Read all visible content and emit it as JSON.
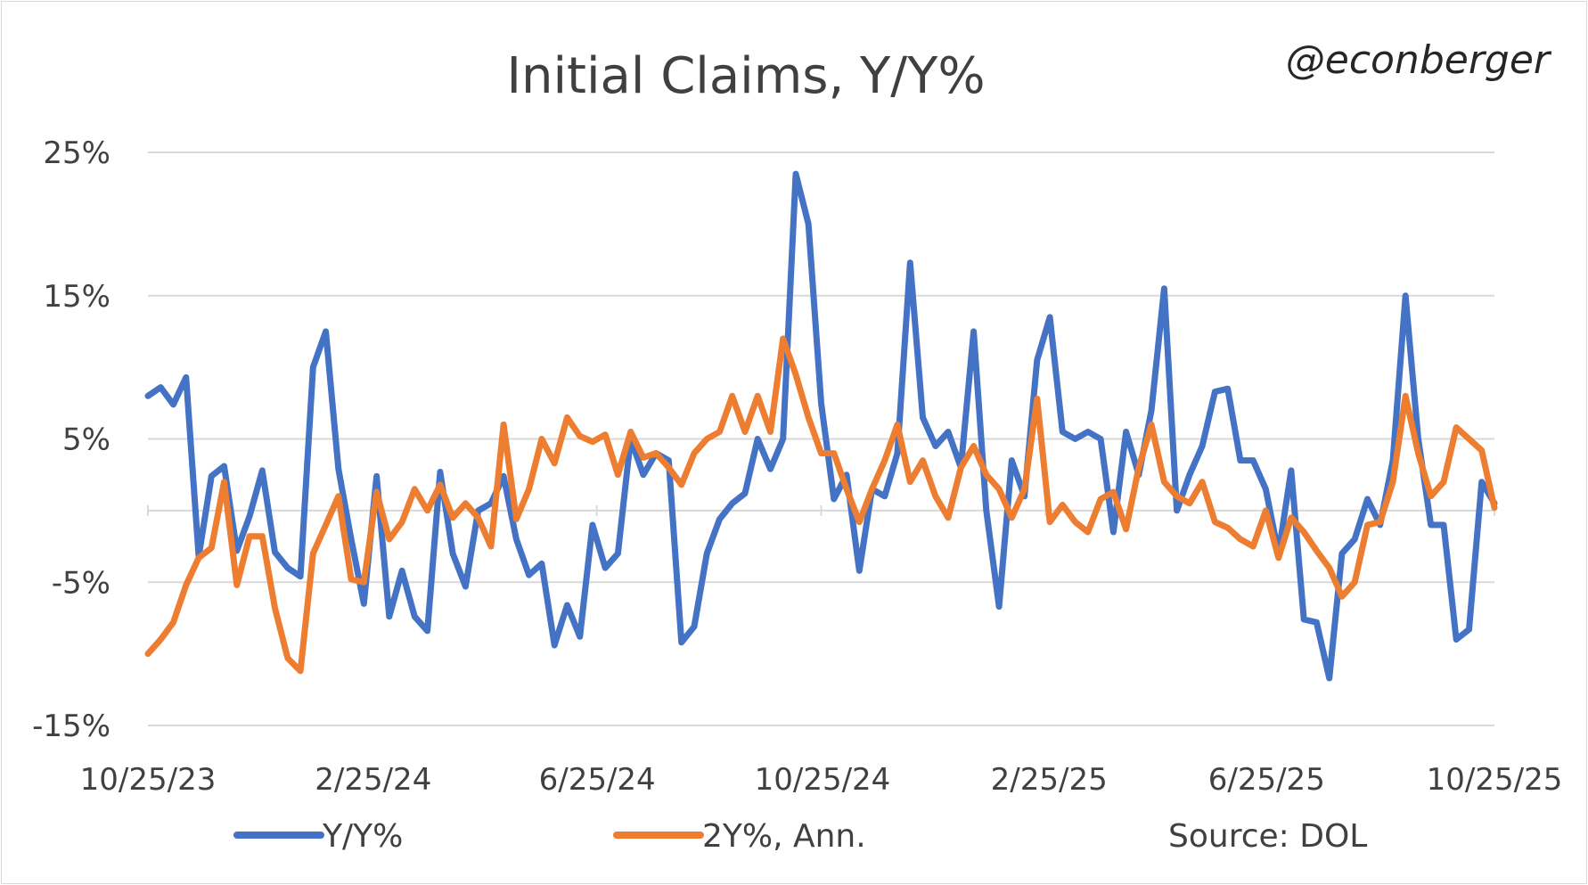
{
  "chart_data": {
    "type": "line",
    "title": "Initial Claims, Y/Y%",
    "annotation": "@econberger",
    "source": "Source: DOL",
    "y_ticks": [
      "25%",
      "15%",
      "5%",
      "-5%",
      "-15%"
    ],
    "y_tick_values": [
      25,
      15,
      5,
      -5,
      -15
    ],
    "ylim": [
      -15,
      25
    ],
    "x_ticks": [
      "10/25/23",
      "2/25/24",
      "6/25/24",
      "10/25/24",
      "2/25/25",
      "6/25/25",
      "10/25/25"
    ],
    "x_tick_positions": [
      0,
      17.4,
      34.7,
      52.1,
      69.6,
      86.4,
      104
    ],
    "x_range": [
      0,
      104
    ],
    "grid": true,
    "zero_line": true,
    "legend_position": "bottom",
    "series": [
      {
        "name": "Y/Y%",
        "color": "#4472c4",
        "values": [
          8,
          8.6,
          7.4,
          9.3,
          -3.2,
          2.4,
          3.1,
          -2.8,
          -0.4,
          2.8,
          -2.9,
          -4.0,
          -4.6,
          10.0,
          12.5,
          2.9,
          -2.0,
          -6.5,
          2.4,
          -7.4,
          -4.2,
          -7.4,
          -8.4,
          2.7,
          -3.0,
          -5.3,
          0,
          0.5,
          2.4,
          -2.0,
          -4.5,
          -3.7,
          -9.4,
          -6.6,
          -8.8,
          -1.0,
          -4.0,
          -3.0,
          5.0,
          2.5,
          4.0,
          3.5,
          -9.2,
          -8.1,
          -3.0,
          -0.6,
          0.5,
          1.2,
          5.0,
          2.9,
          5.0,
          23.5,
          20.0,
          7.5,
          0.8,
          2.5,
          -4.2,
          1.5,
          1.0,
          4.0,
          17.3,
          6.5,
          4.5,
          5.5,
          3.0,
          12.5,
          0,
          -6.7,
          3.5,
          1.0,
          10.5,
          13.5,
          5.5,
          5.0,
          5.5,
          5.0,
          -1.5,
          5.5,
          2.5,
          7.0,
          15.5,
          0,
          2.5,
          4.5,
          8.3,
          8.5,
          3.5,
          3.5,
          1.5,
          -3.0,
          2.8,
          -7.6,
          -7.8,
          -11.7,
          -3.0,
          -2.0,
          0.8,
          -1.0,
          3.5,
          15.0,
          5.0,
          -1.0,
          -1.0,
          -9.0,
          -8.3,
          2.0,
          0.5
        ]
      },
      {
        "name": "2Y%, Ann.",
        "color": "#ed7d31",
        "values": [
          -10,
          -9,
          -7.8,
          -5.2,
          -3.3,
          -2.6,
          2.0,
          -5.2,
          -1.8,
          -1.8,
          -6.8,
          -10.3,
          -11.2,
          -3.0,
          -1.0,
          1.0,
          -4.8,
          -5.0,
          1.3,
          -2.0,
          -0.8,
          1.5,
          0,
          1.8,
          -0.5,
          0.5,
          -0.5,
          -2.5,
          6.0,
          -0.6,
          1.5,
          5.0,
          3.3,
          6.5,
          5.2,
          4.8,
          5.3,
          2.5,
          5.5,
          3.7,
          4.0,
          3.0,
          1.8,
          4.0,
          5.0,
          5.5,
          8.0,
          5.5,
          8.0,
          5.5,
          12.0,
          9.5,
          6.5,
          4.0,
          4.0,
          1.5,
          -0.8,
          1.5,
          3.5,
          6.0,
          2.0,
          3.5,
          1.0,
          -0.5,
          3.0,
          4.5,
          2.5,
          1.5,
          -0.5,
          1.5,
          7.8,
          -0.8,
          0.4,
          -0.8,
          -1.5,
          0.8,
          1.3,
          -1.3,
          3.0,
          6.0,
          2.0,
          1.0,
          0.5,
          2.0,
          -0.8,
          -1.2,
          -2.0,
          -2.5,
          0,
          -3.3,
          -0.5,
          -1.5,
          -2.8,
          -4.0,
          -6.0,
          -5.0,
          -1.0,
          -0.8,
          2.0,
          8.0,
          4.0,
          1.0,
          2.0,
          5.8,
          5.0,
          4.2,
          0.2
        ]
      }
    ]
  }
}
